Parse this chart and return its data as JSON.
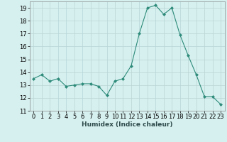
{
  "x": [
    0,
    1,
    2,
    3,
    4,
    5,
    6,
    7,
    8,
    9,
    10,
    11,
    12,
    13,
    14,
    15,
    16,
    17,
    18,
    19,
    20,
    21,
    22,
    23
  ],
  "y": [
    13.5,
    13.8,
    13.3,
    13.5,
    12.9,
    13.0,
    13.1,
    13.1,
    12.9,
    12.2,
    13.3,
    13.5,
    14.5,
    17.0,
    19.0,
    19.2,
    18.5,
    19.0,
    16.9,
    15.3,
    13.8,
    12.1,
    12.1,
    11.5
  ],
  "line_color": "#2e8b7a",
  "marker": "D",
  "marker_size": 2,
  "bg_color": "#d6f0ef",
  "grid_color": "#b8d4d4",
  "xlabel": "Humidex (Indice chaleur)",
  "ylim": [
    11,
    19.5
  ],
  "xlim": [
    -0.5,
    23.5
  ],
  "yticks": [
    11,
    12,
    13,
    14,
    15,
    16,
    17,
    18,
    19
  ],
  "xticks": [
    0,
    1,
    2,
    3,
    4,
    5,
    6,
    7,
    8,
    9,
    10,
    11,
    12,
    13,
    14,
    15,
    16,
    17,
    18,
    19,
    20,
    21,
    22,
    23
  ],
  "xlabel_fontsize": 6.5,
  "tick_fontsize": 6
}
